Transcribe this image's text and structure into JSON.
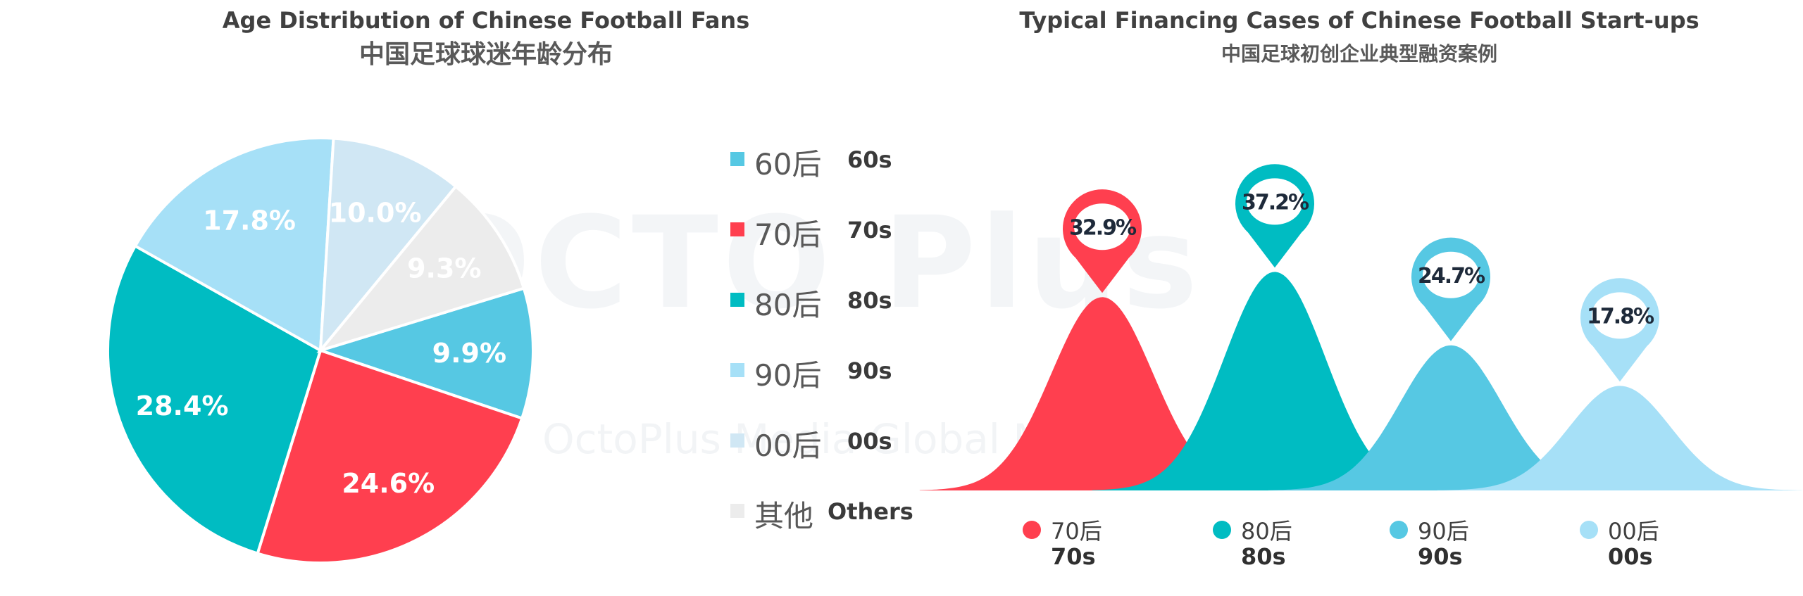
{
  "colors": {
    "c60s": "#56c8e3",
    "c70s": "#ff3f4f",
    "c80s": "#00bcc2",
    "c90s": "#a6e0f7",
    "c00s": "#d0e7f4",
    "others": "#ececec"
  },
  "watermark": {
    "logo": "OCTO Plus",
    "text": "OctoPlus Media Global Media"
  },
  "chart_data": [
    {
      "type": "pie",
      "title": "Age Distribution of Chinese Football Fans",
      "subtitle": "中国足球球迷年龄分布",
      "slices": [
        {
          "label_cn": "60后",
          "label_en": "60s",
          "value": 9.9,
          "display": "9.9%",
          "color_key": "c60s"
        },
        {
          "label_cn": "70后",
          "label_en": "70s",
          "value": 24.6,
          "display": "24.6%",
          "color_key": "c70s"
        },
        {
          "label_cn": "80后",
          "label_en": "80s",
          "value": 28.4,
          "display": "28.4%",
          "color_key": "c80s"
        },
        {
          "label_cn": "90后",
          "label_en": "90s",
          "value": 17.8,
          "display": "17.8%",
          "color_key": "c90s"
        },
        {
          "label_cn": "00后",
          "label_en": "00s",
          "value": 10.0,
          "display": "10.0%",
          "color_key": "c00s"
        },
        {
          "label_cn": "其他",
          "label_en": "Others",
          "value": 9.3,
          "display": "9.3%",
          "color_key": "others"
        }
      ],
      "legend": "right"
    },
    {
      "type": "area",
      "title": "Typical Financing Cases of Chinese Football Start-ups",
      "subtitle": "中国足球初创企业典型融资案例",
      "categories": [
        {
          "label_cn": "70后",
          "label_en": "70s",
          "value": 32.9,
          "display": "32.9%",
          "color_key": "c70s"
        },
        {
          "label_cn": "80后",
          "label_en": "80s",
          "value": 37.2,
          "display": "37.2%",
          "color_key": "c80s"
        },
        {
          "label_cn": "90后",
          "label_en": "90s",
          "value": 24.7,
          "display": "24.7%",
          "color_key": "c60s"
        },
        {
          "label_cn": "00后",
          "label_en": "00s",
          "value": 17.8,
          "display": "17.8%",
          "color_key": "c90s"
        }
      ],
      "legend": "bottom"
    }
  ]
}
